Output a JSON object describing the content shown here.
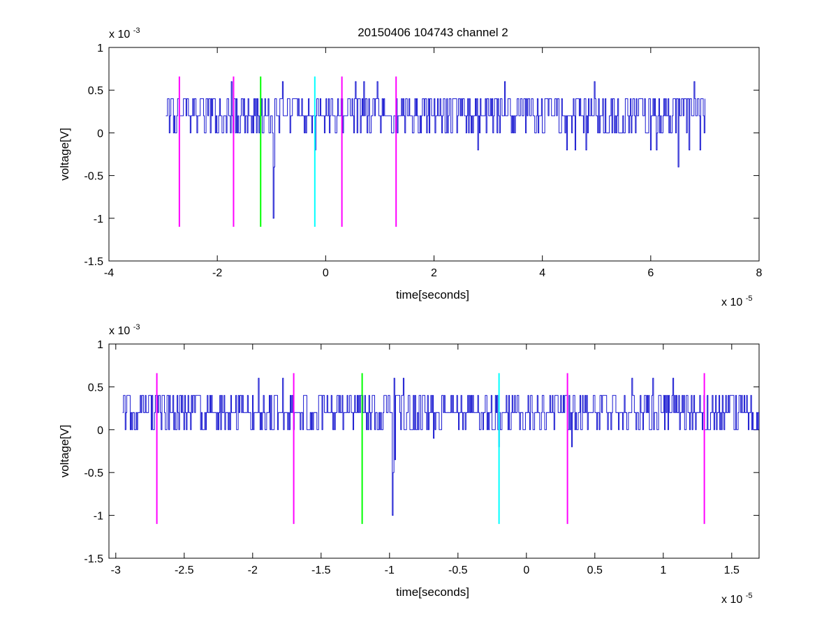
{
  "title": "20150406 104743 channel 2",
  "colors": {
    "signal": "#0000cc",
    "magenta": "#ff00ff",
    "green": "#00ff00",
    "cyan": "#00ffff"
  },
  "chart_data": [
    {
      "type": "line",
      "xlabel": "time[seconds]",
      "ylabel": "voltage[V]",
      "x_exponent": "x 10",
      "x_exponent_power": "-5",
      "y_exponent": "x 10",
      "y_exponent_power": "-3",
      "xlim": [
        -4,
        8
      ],
      "ylim": [
        -1.5,
        1
      ],
      "xticks": [
        -4,
        -2,
        0,
        2,
        4,
        6,
        8
      ],
      "xtick_labels": [
        "-4",
        "-2",
        "0",
        "2",
        "4",
        "6",
        "8"
      ],
      "yticks": [
        -1.5,
        -1,
        -0.5,
        0,
        0.5,
        1
      ],
      "ytick_labels": [
        "-1.5",
        "-1",
        "-0.5",
        "0",
        "0.5",
        "1"
      ],
      "grid": false,
      "series": [
        {
          "color": "#0000cc",
          "x_range": [
            -2.95,
            7.0
          ],
          "baseline": 0.2,
          "levels": [
            0,
            0.2,
            0.4
          ],
          "spikes": [
            {
              "x": -0.97,
              "y": -1.0
            },
            {
              "x": -0.95,
              "y": -0.4
            },
            {
              "x": -1.75,
              "y": 0.6
            },
            {
              "x": -0.8,
              "y": 0.6
            },
            {
              "x": 0.55,
              "y": 0.6
            },
            {
              "x": 0.7,
              "y": 0.6
            },
            {
              "x": 0.95,
              "y": 0.6
            },
            {
              "x": 3.3,
              "y": 0.6
            },
            {
              "x": 4.95,
              "y": 0.6
            },
            {
              "x": 6.8,
              "y": 0.6
            },
            {
              "x": -0.2,
              "y": -0.2
            },
            {
              "x": 2.8,
              "y": -0.2
            },
            {
              "x": 4.45,
              "y": -0.2
            },
            {
              "x": 4.6,
              "y": -0.2
            },
            {
              "x": 4.8,
              "y": -0.2
            },
            {
              "x": 6.0,
              "y": -0.2
            },
            {
              "x": 6.1,
              "y": -0.2
            },
            {
              "x": 6.5,
              "y": -0.4
            },
            {
              "x": 6.7,
              "y": -0.2
            },
            {
              "x": 6.9,
              "y": -0.2
            }
          ]
        }
      ],
      "markers": [
        {
          "x": -2.7,
          "color": "magenta",
          "y": [
            -1.1,
            0.66
          ]
        },
        {
          "x": -1.7,
          "color": "magenta",
          "y": [
            -1.1,
            0.66
          ]
        },
        {
          "x": -1.2,
          "color": "green",
          "y": [
            -1.1,
            0.66
          ]
        },
        {
          "x": -0.2,
          "color": "cyan",
          "y": [
            -1.1,
            0.66
          ]
        },
        {
          "x": 0.3,
          "color": "magenta",
          "y": [
            -1.1,
            0.66
          ]
        },
        {
          "x": 1.3,
          "color": "magenta",
          "y": [
            -1.1,
            0.66
          ]
        }
      ]
    },
    {
      "type": "line",
      "xlabel": "time[seconds]",
      "ylabel": "voltage[V]",
      "x_exponent": "x 10",
      "x_exponent_power": "-5",
      "y_exponent": "x 10",
      "y_exponent_power": "-3",
      "xlim": [
        -3.05,
        1.7
      ],
      "ylim": [
        -1.5,
        1
      ],
      "xticks": [
        -3,
        -2.5,
        -2,
        -1.5,
        -1,
        -0.5,
        0,
        0.5,
        1,
        1.5
      ],
      "xtick_labels": [
        "-3",
        "-2.5",
        "-2",
        "-1.5",
        "-1",
        "-0.5",
        "0",
        "0.5",
        "1",
        "1.5"
      ],
      "yticks": [
        -1.5,
        -1,
        -0.5,
        0,
        0.5,
        1
      ],
      "ytick_labels": [
        "-1.5",
        "-1",
        "-0.5",
        "0",
        "0.5",
        "1"
      ],
      "grid": false,
      "series": [
        {
          "color": "#0000cc",
          "x_range": [
            -2.95,
            1.7
          ],
          "baseline": 0.2,
          "levels": [
            0,
            0.2,
            0.4
          ],
          "spikes": [
            {
              "x": -0.98,
              "y": -1.0
            },
            {
              "x": -0.97,
              "y": -0.7
            },
            {
              "x": -1.96,
              "y": 0.6
            },
            {
              "x": -1.78,
              "y": 0.6
            },
            {
              "x": -0.97,
              "y": 0.6
            },
            {
              "x": -0.9,
              "y": 0.6
            },
            {
              "x": 0.77,
              "y": 0.6
            },
            {
              "x": 0.92,
              "y": 0.6
            },
            {
              "x": -0.68,
              "y": -0.1
            },
            {
              "x": -0.2,
              "y": -0.2
            },
            {
              "x": 0.33,
              "y": -0.2
            },
            {
              "x": 1.07,
              "y": 0.6
            }
          ]
        }
      ],
      "markers": [
        {
          "x": -2.7,
          "color": "magenta",
          "y": [
            -1.1,
            0.66
          ]
        },
        {
          "x": -1.7,
          "color": "magenta",
          "y": [
            -1.1,
            0.66
          ]
        },
        {
          "x": -1.2,
          "color": "green",
          "y": [
            -1.1,
            0.66
          ]
        },
        {
          "x": -0.2,
          "color": "cyan",
          "y": [
            -1.1,
            0.66
          ]
        },
        {
          "x": 0.3,
          "color": "magenta",
          "y": [
            -1.1,
            0.66
          ]
        },
        {
          "x": 1.3,
          "color": "magenta",
          "y": [
            -1.1,
            0.66
          ]
        }
      ]
    }
  ]
}
